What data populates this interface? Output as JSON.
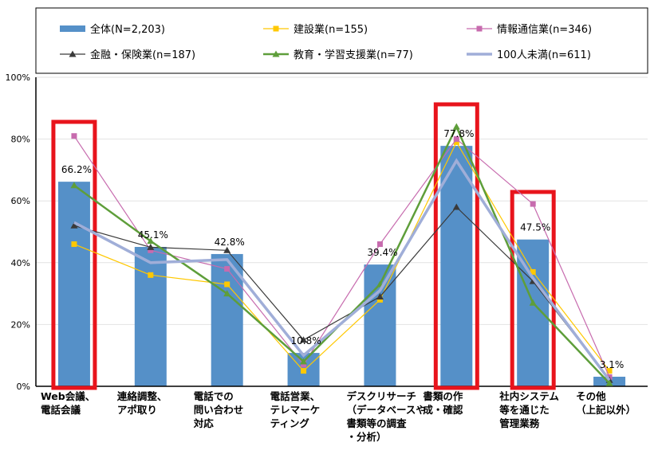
{
  "chart_data": {
    "type": "bar",
    "categories": [
      [
        "Web会議、",
        "電話会議"
      ],
      [
        "連絡調整、",
        "アポ取り"
      ],
      [
        "電話での",
        "問い合わせ",
        "対応"
      ],
      [
        "電話営業、",
        "テレマーケ",
        "ティング"
      ],
      [
        "デスクリサーチ",
        "（データベースや",
        "書類等の調査",
        "・分析）"
      ],
      [
        "書類の作",
        "成・確認"
      ],
      [
        "社内システム",
        "等を通じた",
        "管理業務"
      ],
      [
        "その他",
        "（上記以外）"
      ]
    ],
    "ylim": [
      0,
      100
    ],
    "yticks": [
      "0%",
      "20%",
      "40%",
      "60%",
      "80%",
      "100%"
    ],
    "grid": true,
    "legend_placement": "top",
    "bar_series": {
      "name": "全体(N=2,203)",
      "color": "#5590C8",
      "values": [
        66.2,
        45.1,
        42.8,
        10.8,
        39.4,
        77.8,
        47.5,
        3.1
      ],
      "labels": [
        "66.2%",
        "45.1%",
        "42.8%",
        "10.8%",
        "39.4%",
        "77.8%",
        "47.5%",
        "3.1%"
      ]
    },
    "line_series": [
      {
        "name": "建設業(n=155)",
        "color": "#FFC800",
        "marker": "square",
        "width": 1.2,
        "values": [
          46,
          36,
          33,
          5,
          28,
          79,
          37,
          5
        ]
      },
      {
        "name": "情報通信業(n=346)",
        "color": "#C76BAE",
        "marker": "square",
        "width": 1.2,
        "values": [
          81,
          44,
          38,
          7,
          46,
          80,
          59,
          3
        ]
      },
      {
        "name": "金融・保険業(n=187)",
        "color": "#3A3A3A",
        "marker": "triangle",
        "width": 1.2,
        "values": [
          52,
          45,
          44,
          15,
          29,
          58,
          34,
          2
        ]
      },
      {
        "name": "教育・学習支援業(n=77)",
        "color": "#5E9E3A",
        "marker": "triangle",
        "width": 2.5,
        "values": [
          65,
          47,
          30,
          8,
          33,
          84,
          27,
          1
        ]
      },
      {
        "name": "100人未満(n=611)",
        "color": "#A0AED8",
        "marker": "none",
        "width": 3.5,
        "values": [
          53,
          40,
          41,
          10,
          31,
          73,
          35,
          2
        ]
      }
    ],
    "highlighted_categories": [
      0,
      5,
      6
    ],
    "highlight_color": "#E8141C"
  }
}
